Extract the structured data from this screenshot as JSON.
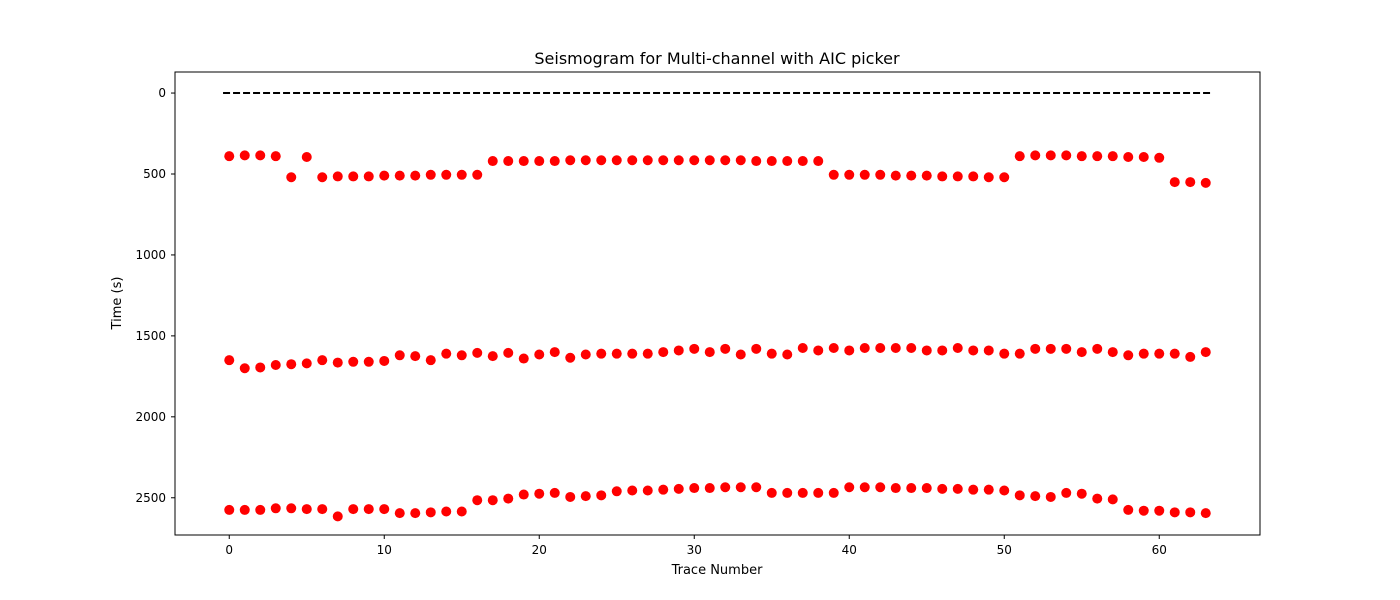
{
  "chart_data": {
    "type": "scatter",
    "title": "Seismogram for Multi-channel with AIC picker",
    "xlabel": "Trace Number",
    "ylabel": "Time (s)",
    "xlim": [
      -3.5,
      66.5
    ],
    "ylim": [
      2730,
      -130
    ],
    "y_inverted": true,
    "xticks": [
      0,
      10,
      20,
      30,
      40,
      50,
      60
    ],
    "yticks": [
      0,
      500,
      1000,
      1500,
      2000,
      2500
    ],
    "grid": false,
    "colors": {
      "picks": "#ff0000",
      "traces": "#000000"
    },
    "traces": {
      "x_range": [
        0,
        63
      ],
      "time": 0
    },
    "series": [
      {
        "values": [
          390,
          385,
          385,
          390,
          520,
          395,
          520,
          515,
          515,
          515,
          510,
          510,
          510,
          505,
          505,
          505,
          505,
          420,
          420,
          420,
          420,
          420,
          415,
          415,
          415,
          415,
          415,
          415,
          415,
          415,
          415,
          415,
          415,
          415,
          420,
          420,
          420,
          420,
          420,
          505,
          505,
          505,
          505,
          510,
          510,
          510,
          515,
          515,
          515,
          520,
          520,
          390,
          385,
          385,
          385,
          390,
          390,
          390,
          395,
          395,
          400,
          550,
          550,
          555
        ]
      },
      {
        "values": [
          1650,
          1700,
          1695,
          1680,
          1675,
          1670,
          1650,
          1665,
          1660,
          1660,
          1655,
          1620,
          1625,
          1650,
          1610,
          1620,
          1605,
          1625,
          1605,
          1640,
          1615,
          1600,
          1635,
          1615,
          1610,
          1610,
          1610,
          1610,
          1600,
          1590,
          1580,
          1600,
          1580,
          1615,
          1580,
          1610,
          1615,
          1575,
          1590,
          1575,
          1590,
          1575,
          1575,
          1575,
          1575,
          1590,
          1590,
          1575,
          1590,
          1590,
          1610,
          1610,
          1580,
          1580,
          1580,
          1600,
          1580,
          1600,
          1620,
          1610,
          1610,
          1610,
          1630,
          1600
        ]
      },
      {
        "values": [
          2575,
          2575,
          2575,
          2565,
          2565,
          2570,
          2570,
          2615,
          2570,
          2570,
          2570,
          2595,
          2595,
          2590,
          2585,
          2585,
          2515,
          2515,
          2505,
          2480,
          2475,
          2470,
          2495,
          2490,
          2485,
          2460,
          2455,
          2455,
          2450,
          2445,
          2440,
          2440,
          2435,
          2435,
          2435,
          2470,
          2470,
          2470,
          2470,
          2470,
          2435,
          2435,
          2435,
          2440,
          2440,
          2440,
          2445,
          2445,
          2450,
          2450,
          2455,
          2485,
          2490,
          2495,
          2470,
          2475,
          2505,
          2510,
          2575,
          2580,
          2580,
          2590,
          2590,
          2595
        ]
      }
    ]
  }
}
